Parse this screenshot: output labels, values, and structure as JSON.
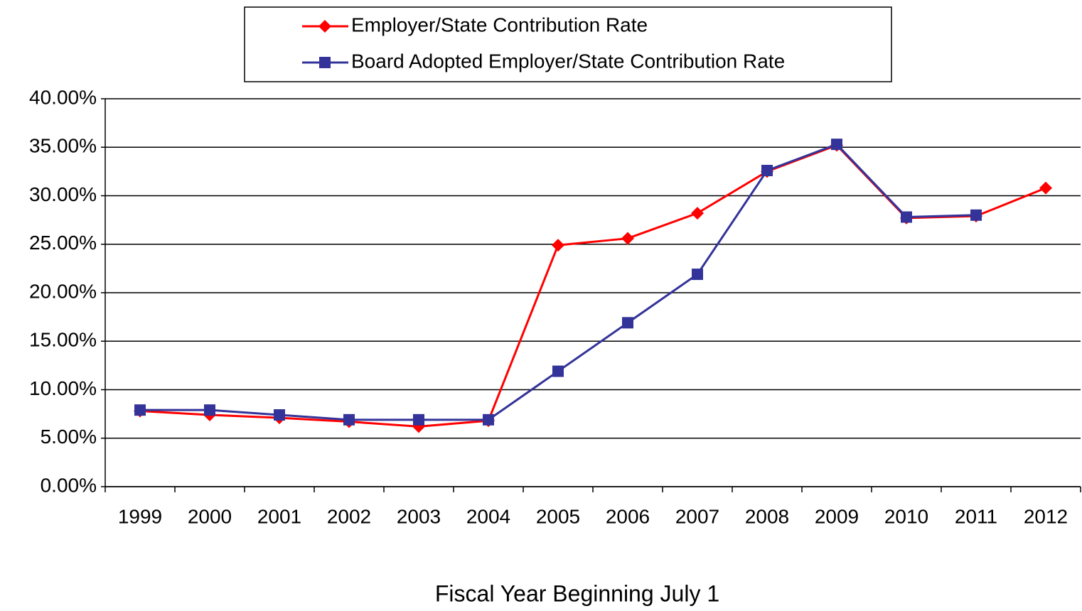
{
  "chart_data": {
    "type": "line",
    "x_label": "Fiscal Year Beginning July 1",
    "categories": [
      "1999",
      "2000",
      "2001",
      "2002",
      "2003",
      "2004",
      "2005",
      "2006",
      "2007",
      "2008",
      "2009",
      "2010",
      "2011",
      "2012"
    ],
    "series": [
      {
        "name": "Employer/State Contribution Rate",
        "color": "#ff0000",
        "marker": "diamond",
        "values": [
          7.8,
          7.4,
          7.1,
          6.7,
          6.2,
          6.8,
          24.9,
          25.6,
          28.2,
          32.5,
          35.2,
          27.7,
          27.9,
          30.8
        ]
      },
      {
        "name": "Board Adopted Employer/State Contribution Rate",
        "color": "#333399",
        "marker": "square",
        "values": [
          7.9,
          7.9,
          7.4,
          6.9,
          6.9,
          6.9,
          11.9,
          16.9,
          21.9,
          32.6,
          35.3,
          27.8,
          28.0,
          null
        ]
      }
    ],
    "ylim": [
      0,
      40
    ],
    "yticks": [
      {
        "value": 0,
        "label": "0.00%"
      },
      {
        "value": 5,
        "label": "5.00%"
      },
      {
        "value": 10,
        "label": "10.00%"
      },
      {
        "value": 15,
        "label": "15.00%"
      },
      {
        "value": 20,
        "label": "20.00%"
      },
      {
        "value": 25,
        "label": "25.00%"
      },
      {
        "value": 30,
        "label": "30.00%"
      },
      {
        "value": 35,
        "label": "35.00%"
      },
      {
        "value": 40,
        "label": "40.00%"
      }
    ],
    "grid": true,
    "legend": "top"
  }
}
